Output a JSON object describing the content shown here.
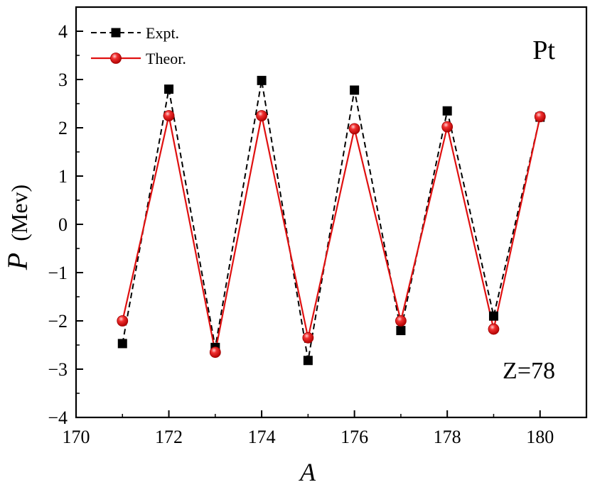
{
  "chart_data": {
    "type": "line",
    "xlabel": "A",
    "ylabel": "P",
    "ylabel_unit": "(Mev)",
    "xlim": [
      170,
      181
    ],
    "ylim": [
      -4,
      4.5
    ],
    "xticks": [
      170,
      172,
      174,
      176,
      178,
      180
    ],
    "xtick_labels": [
      "170",
      "172",
      "174",
      "176",
      "178",
      "180"
    ],
    "yticks": [
      -4,
      -3,
      -2,
      -1,
      0,
      1,
      2,
      3,
      4
    ],
    "ytick_labels": [
      "−4",
      "−3",
      "−2",
      "−1",
      "0",
      "1",
      "2",
      "3",
      "4"
    ],
    "x": [
      171,
      172,
      173,
      174,
      175,
      176,
      177,
      178,
      179,
      180
    ],
    "series": [
      {
        "name": "Expt.",
        "marker": "square",
        "line": "dashed",
        "color": "#000000",
        "values": [
          -2.47,
          2.8,
          -2.55,
          2.98,
          -2.82,
          2.78,
          -2.2,
          2.35,
          -1.9,
          2.22
        ]
      },
      {
        "name": "Theor.",
        "marker": "circle",
        "line": "solid",
        "color": "#e01010",
        "values": [
          -2.0,
          2.25,
          -2.65,
          2.25,
          -2.35,
          1.98,
          -2.0,
          2.02,
          -2.17,
          2.23
        ]
      }
    ],
    "annotations": [
      "Pt",
      "Z=78"
    ],
    "legend_position": "top-left",
    "grid": false
  }
}
